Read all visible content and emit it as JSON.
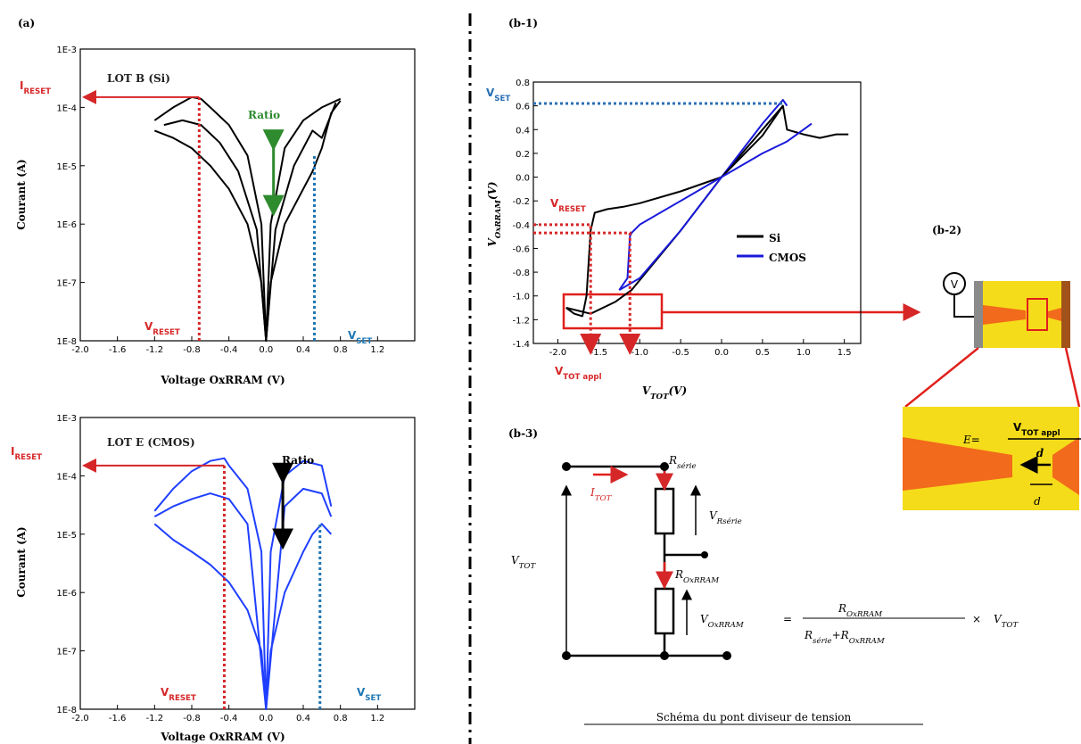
{
  "chart_data": [
    {
      "type": "line",
      "panel": "(a)",
      "title": "LOT B (Si)",
      "xlabel": "Voltage OxRRAM (V)",
      "ylabel": "Courant (A)",
      "log_y": true,
      "xlim": [
        -2.0,
        1.6
      ],
      "xticks": [
        {
          "value": -2.0,
          "label": "-2.0"
        },
        -1.6,
        -1.2,
        -0.8,
        -0.4,
        {
          "value": 0.0,
          "label": "0.0"
        },
        0.4,
        0.8,
        1.2
      ],
      "ylim": [
        1e-08,
        0.001
      ],
      "yticks": [
        {
          "value": 1e-08,
          "label": "1E-8"
        },
        {
          "value": 1e-07,
          "label": "1E-7"
        },
        {
          "value": 1e-06,
          "label": "1E-6"
        },
        {
          "value": 1e-05,
          "label": "1E-5"
        },
        {
          "value": 0.0001,
          "label": "1E-4"
        },
        {
          "value": 0.001,
          "label": "1E-3"
        }
      ],
      "series": [
        {
          "color": "#000000",
          "x": [
            -1.2,
            -1.0,
            -0.8,
            -0.6,
            -0.4,
            -0.2,
            -0.05,
            0,
            0.05,
            0.2,
            0.4,
            0.5,
            0.6,
            0.7,
            0.8
          ],
          "values": [
            4e-05,
            3e-05,
            2e-05,
            1e-05,
            4e-06,
            1e-06,
            1e-07,
            1e-08,
            1e-07,
            1e-06,
            4e-06,
            8e-06,
            2e-05,
            8e-05,
            0.00013
          ]
        },
        {
          "color": "#000000",
          "x": [
            -1.2,
            -1.0,
            -0.8,
            -0.7,
            -0.6,
            -0.4,
            -0.2,
            -0.05,
            0,
            0.05,
            0.2,
            0.4,
            0.6,
            0.8
          ],
          "values": [
            6e-05,
            0.0001,
            0.00015,
            0.00014,
            0.0001,
            5e-05,
            1.5e-05,
            1e-06,
            1e-08,
            1e-06,
            2e-05,
            6e-05,
            0.0001,
            0.00014
          ]
        },
        {
          "color": "#000000",
          "x": [
            -1.1,
            -0.9,
            -0.7,
            -0.5,
            -0.3,
            -0.1,
            0,
            0.1,
            0.3,
            0.5,
            0.6,
            0.75
          ],
          "values": [
            5e-05,
            6e-05,
            5e-05,
            2.5e-05,
            8e-06,
            8e-07,
            1e-08,
            8e-07,
            1e-05,
            4e-05,
            3e-05,
            0.00012
          ]
        }
      ],
      "markers": [
        {
          "x": -0.72,
          "y": 0.00015,
          "style": "v",
          "color": "#d62728"
        },
        {
          "x": -0.72,
          "y": 0.00015,
          "style": "h-arrow",
          "color": "#d62728"
        },
        {
          "x": 0.52,
          "y": 1.5e-05,
          "style": "v",
          "color": "#1f77b4"
        },
        {
          "x": 0.08,
          "y": [
            2e-05,
            1.5e-06
          ],
          "style": "double-arrow",
          "color": "#2e8b2e"
        }
      ],
      "annotations": [
        {
          "main": "I",
          "sub": "RESET",
          "color": "#d62728"
        },
        {
          "text": "Ratio",
          "color": "#2e8b2e"
        },
        {
          "main": "V",
          "sub": "RESET",
          "color": "#d62728"
        },
        {
          "main": "V",
          "sub": "SET",
          "color": "#1f77b4"
        }
      ]
    },
    {
      "type": "line",
      "title": "LOT E (CMOS)",
      "xlabel": "Voltage OxRRAM (V)",
      "ylabel": "Courant (A)",
      "log_y": true,
      "xlim": [
        -2.0,
        1.6
      ],
      "xticks": [
        {
          "value": -2.0,
          "label": "-2.0"
        },
        -1.6,
        -1.2,
        -0.8,
        -0.4,
        {
          "value": 0.0,
          "label": "0.0"
        },
        0.4,
        0.8,
        1.2
      ],
      "ylim": [
        1e-08,
        0.001
      ],
      "yticks": [
        {
          "value": 1e-08,
          "label": "1E-8"
        },
        {
          "value": 1e-07,
          "label": "1E-7"
        },
        {
          "value": 1e-06,
          "label": "1E-6"
        },
        {
          "value": 1e-05,
          "label": "1E-5"
        },
        {
          "value": 0.0001,
          "label": "1E-4"
        },
        {
          "value": 0.001,
          "label": "1E-3"
        }
      ],
      "series": [
        {
          "color": "#1f3fff",
          "x": [
            -1.2,
            -1.0,
            -0.8,
            -0.6,
            -0.4,
            -0.2,
            -0.05,
            0,
            0.05,
            0.2,
            0.4,
            0.5,
            0.6,
            0.7
          ],
          "values": [
            1.5e-05,
            8e-06,
            5e-06,
            3e-06,
            1.5e-06,
            5e-07,
            1e-07,
            1e-08,
            1e-07,
            1e-06,
            5e-06,
            1e-05,
            1.5e-05,
            1e-05
          ]
        },
        {
          "color": "#1f3fff",
          "x": [
            -1.2,
            -1.0,
            -0.8,
            -0.6,
            -0.45,
            -0.4,
            -0.2,
            -0.05,
            0,
            0.05,
            0.2,
            0.4,
            0.6,
            0.7
          ],
          "values": [
            2.5e-05,
            6e-05,
            0.00012,
            0.00018,
            0.0002,
            0.00015,
            6e-05,
            5e-06,
            1e-08,
            5e-06,
            0.0001,
            0.00018,
            0.00015,
            3e-05
          ]
        },
        {
          "color": "#1f3fff",
          "x": [
            -1.2,
            -1.0,
            -0.8,
            -0.6,
            -0.4,
            -0.2,
            0,
            0.2,
            0.4,
            0.6,
            0.7
          ],
          "values": [
            2e-05,
            3e-05,
            4e-05,
            5e-05,
            4e-05,
            1.5e-05,
            1e-08,
            3e-05,
            6e-05,
            5e-05,
            2e-05
          ]
        }
      ],
      "markers": [
        {
          "x": -0.45,
          "y": 0.00015,
          "style": "v",
          "color": "#d62728"
        },
        {
          "x": -0.45,
          "y": 0.00015,
          "style": "h-arrow",
          "color": "#d62728"
        },
        {
          "x": 0.58,
          "y": 1.5e-05,
          "style": "v",
          "color": "#1f77b4"
        },
        {
          "x": 0.18,
          "y": [
            8e-05,
            6e-06
          ],
          "style": "double-arrow",
          "color": "#000000"
        }
      ],
      "annotations": [
        {
          "main": "I",
          "sub": "RESET",
          "color": "#d62728"
        },
        {
          "text": "Ratio",
          "color": "#000000"
        },
        {
          "main": "V",
          "sub": "RESET",
          "color": "#d62728"
        },
        {
          "main": "V",
          "sub": "SET",
          "color": "#1f77b4"
        }
      ]
    },
    {
      "type": "line",
      "panel": "(b-1)",
      "xlabel": {
        "main": "V",
        "sub": "TOT",
        "unit": "(V)"
      },
      "ylabel": {
        "main": "V",
        "sub": "OxRRAM",
        "unit": "(V)"
      },
      "log_y": false,
      "xlim": [
        -2.3,
        1.7
      ],
      "xticks": [
        {
          "value": -2.0,
          "label": "-2.0"
        },
        -1.5,
        {
          "value": -1.0,
          "label": "-1.0"
        },
        -0.5,
        {
          "value": 0.0,
          "label": "0.0"
        },
        0.5,
        {
          "value": 1.0,
          "label": "1.0"
        },
        1.5
      ],
      "ylim": [
        -1.4,
        0.8
      ],
      "yticks": [
        -1.4,
        -1.2,
        {
          "value": -1.0,
          "label": "-1.0"
        },
        -0.8,
        -0.6,
        -0.4,
        -0.2,
        {
          "value": 0.0,
          "label": "0.0"
        },
        0.2,
        0.4,
        0.6,
        0.8
      ],
      "series": [
        {
          "name": "Si",
          "color": "#000000",
          "x": [
            -1.9,
            -1.8,
            -1.7,
            -1.65,
            -1.6,
            -1.55,
            -1.4,
            -1.2,
            -1.0,
            -0.5,
            0,
            0.5,
            0.7,
            0.75,
            0.8,
            1.0,
            1.2,
            1.4,
            1.55
          ],
          "values": [
            -1.1,
            -1.15,
            -1.17,
            -1.0,
            -0.45,
            -0.3,
            -0.27,
            -0.25,
            -0.22,
            -0.12,
            0,
            0.35,
            0.55,
            0.6,
            0.4,
            0.36,
            0.33,
            0.36,
            0.36
          ]
        },
        {
          "name": "CMOS",
          "color": "#1a1adb",
          "x": [
            -1.25,
            -1.15,
            -1.12,
            -1.1,
            -1.0,
            -0.5,
            0,
            0.5,
            0.8,
            1.0,
            1.1
          ],
          "values": [
            -0.95,
            -0.85,
            -0.5,
            -0.47,
            -0.4,
            -0.2,
            0,
            0.2,
            0.3,
            0.4,
            0.45
          ]
        }
      ],
      "extra_series": [
        {
          "color": "#000000",
          "x": [
            -1.9,
            -1.6,
            -1.3,
            -1.1,
            -0.5,
            0,
            0.5,
            0.75
          ],
          "values": [
            -1.1,
            -1.15,
            -1.05,
            -0.95,
            -0.45,
            0,
            0.4,
            0.6
          ]
        },
        {
          "color": "#1a1adb",
          "x": [
            -1.25,
            -1.0,
            -0.5,
            0,
            0.5,
            0.75,
            0.8
          ],
          "values": [
            -0.95,
            -0.85,
            -0.45,
            0,
            0.45,
            0.65,
            0.6
          ]
        }
      ],
      "markers": [
        {
          "x": 0.75,
          "y": 0.62,
          "style": "h",
          "color": "#2a6fb5"
        },
        {
          "x": -1.6,
          "y": -0.4,
          "style": "hv",
          "color": "#d62728"
        },
        {
          "x": -1.12,
          "y": -0.47,
          "style": "hv",
          "color": "#d62728"
        }
      ],
      "annotations": [
        {
          "main": "V",
          "sub": "SET",
          "color": "#2a6fb5"
        },
        {
          "main": "V",
          "sub": "RESET",
          "color": "#d62728"
        },
        {
          "main": "V",
          "sub": "TOT appl",
          "color": "#d62728"
        }
      ]
    }
  ],
  "diagram_b2": {
    "label": "(b-2)",
    "source": "V",
    "field": {
      "lhs": "E=",
      "num_main": "V",
      "num_sub": "TOT appl",
      "den": "d"
    },
    "gap": "d"
  },
  "circuit_b3": {
    "label": "(b-3)",
    "r_serie": {
      "main": "R",
      "sub": "série"
    },
    "i_tot": {
      "main": "I",
      "sub": "TOT"
    },
    "v_rserie": {
      "main": "V",
      "sub": "Rsérie"
    },
    "r_oxrram": {
      "main": "R",
      "sub": "OxRRAM"
    },
    "v_tot": {
      "main": "V",
      "sub": "TOT"
    },
    "equation": {
      "lhs": {
        "main": "V",
        "sub": "OxRRAM"
      },
      "eq": "=",
      "num": {
        "main": "R",
        "sub": "OxRRAM"
      },
      "den_a": {
        "main": "R",
        "sub": "série"
      },
      "plus": "+",
      "den_b": {
        "main": "R",
        "sub": "OxRRAM"
      },
      "times": "×",
      "rhs": {
        "main": "V",
        "sub": "TOT"
      }
    },
    "caption": "Schéma du pont diviseur de tension"
  }
}
